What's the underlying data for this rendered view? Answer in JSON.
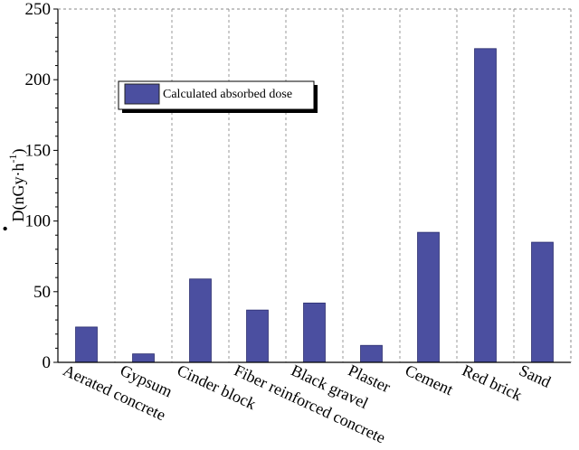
{
  "chart_data": {
    "type": "bar",
    "categories": [
      "Aerated concrete",
      "Gypsum",
      "Cinder block",
      "Fiber reinforced concrete",
      "Black gravel",
      "Plaster",
      "Cement",
      "Red brick",
      "Sand"
    ],
    "series": [
      {
        "name": "Calculated absorbed dose",
        "values": [
          25,
          6,
          59,
          37,
          42,
          12,
          92,
          222,
          85
        ],
        "color": "#4b4fa0"
      }
    ],
    "ylim": [
      0,
      250
    ],
    "yticks": [
      "0",
      "50",
      "100",
      "150",
      "200",
      "250"
    ],
    "ylabel": {
      "symbol": "D",
      "dot": "•",
      "open": "(",
      "unit": "nGy·h",
      "sup": "-1",
      "close": ")"
    },
    "grid": {
      "vertical": true,
      "horizontal": false
    },
    "legend": {
      "placement": "top-left",
      "label": "Calculated absorbed dose"
    }
  }
}
